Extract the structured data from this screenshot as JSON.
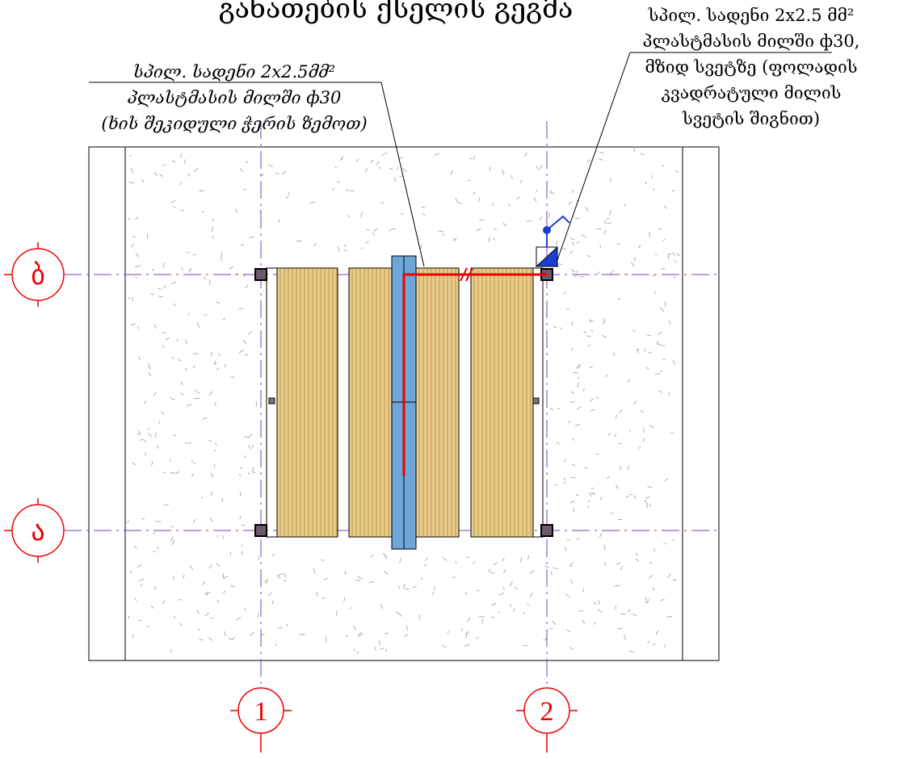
{
  "title": "განათების ქსელის გეგმა",
  "annotations": [
    {
      "lines": [
        "სპილ. სადენი 2x2.5მმ²",
        "პლასტმასის მილში ф30",
        "(ხის შეკიდული ჭერის ზემოთ)"
      ]
    },
    {
      "lines": [
        "სპილ. სადენი 2x2.5 მმ²",
        "პლასტმასის მილში ф30,",
        "მზიდ სვეტზე (ფოლადის",
        "კვადრატული მილის",
        "სვეტის შიგნით)"
      ]
    }
  ],
  "grid_axes": {
    "rows": [
      "ბ",
      "ა"
    ],
    "columns": [
      "1",
      "2"
    ]
  }
}
